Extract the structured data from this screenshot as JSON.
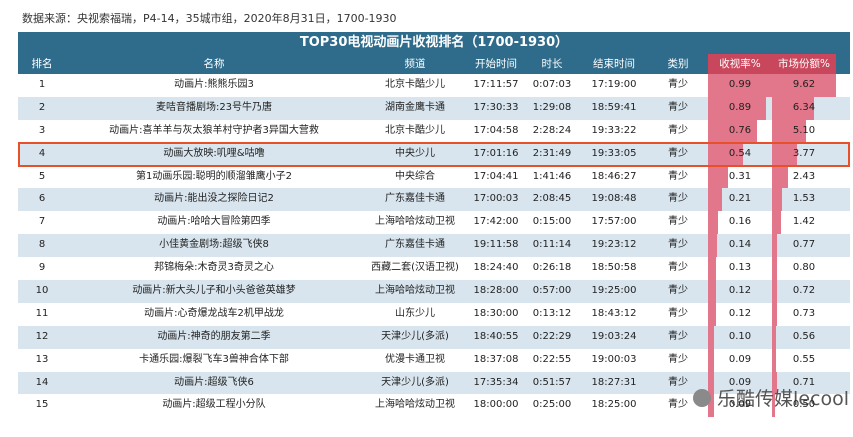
{
  "source": "数据来源：央视索福瑞，P4-14，35城市组，2020年8月31日，1700-1930",
  "brand": "乐酷传媒lecool",
  "chart_data": {
    "type": "table",
    "title": "TOP30电视动画片收视排名（1700-1930）",
    "columns": [
      "排名",
      "名称",
      "频道",
      "开始时间",
      "时长",
      "结束时间",
      "类别",
      "收视率%",
      "市场份额%"
    ],
    "highlight_rank": 4,
    "max_rating": 0.99,
    "max_share": 9.62,
    "rows": [
      {
        "rank": "1",
        "name": "动画片:熊熊乐园3",
        "channel": "北京卡酷少儿",
        "start": "17:11:57",
        "duration": "0:07:03",
        "end": "17:19:00",
        "category": "青少",
        "rating": 0.99,
        "share": 9.62
      },
      {
        "rank": "2",
        "name": "麦咭音播剧场:23号牛乃唐",
        "channel": "湖南金鹰卡通",
        "start": "17:30:33",
        "duration": "1:29:08",
        "end": "18:59:41",
        "category": "青少",
        "rating": 0.89,
        "share": 6.34
      },
      {
        "rank": "3",
        "name": "动画片:喜羊羊与灰太狼羊村守护者3异国大营救",
        "channel": "北京卡酷少儿",
        "start": "17:04:58",
        "duration": "2:28:24",
        "end": "19:33:22",
        "category": "青少",
        "rating": 0.76,
        "share": 5.1
      },
      {
        "rank": "4",
        "name": "动画大放映:叽哩&咕噜",
        "channel": "中央少儿",
        "start": "17:01:16",
        "duration": "2:31:49",
        "end": "19:33:05",
        "category": "青少",
        "rating": 0.54,
        "share": 3.77
      },
      {
        "rank": "5",
        "name": "第1动画乐园:聪明的顺溜雏鹰小子2",
        "channel": "中央综合",
        "start": "17:04:41",
        "duration": "1:41:46",
        "end": "18:46:27",
        "category": "青少",
        "rating": 0.31,
        "share": 2.43
      },
      {
        "rank": "6",
        "name": "动画片:能出没之探险日记2",
        "channel": "广东嘉佳卡通",
        "start": "17:00:03",
        "duration": "2:08:45",
        "end": "19:08:48",
        "category": "青少",
        "rating": 0.21,
        "share": 1.53
      },
      {
        "rank": "7",
        "name": "动画片:哈哈大冒险第四季",
        "channel": "上海哈哈炫动卫视",
        "start": "17:42:00",
        "duration": "0:15:00",
        "end": "17:57:00",
        "category": "青少",
        "rating": 0.16,
        "share": 1.42
      },
      {
        "rank": "8",
        "name": "小佳黄金剧场:超级飞侠8",
        "channel": "广东嘉佳卡通",
        "start": "19:11:58",
        "duration": "0:11:14",
        "end": "19:23:12",
        "category": "青少",
        "rating": 0.14,
        "share": 0.77
      },
      {
        "rank": "9",
        "name": "邦锦梅朵:木奇灵3奇灵之心",
        "channel": "西藏二套(汉语卫视)",
        "start": "18:24:40",
        "duration": "0:26:18",
        "end": "18:50:58",
        "category": "青少",
        "rating": 0.13,
        "share": 0.8
      },
      {
        "rank": "10",
        "name": "动画片:新大头儿子和小头爸爸英雄梦",
        "channel": "上海哈哈炫动卫视",
        "start": "18:28:00",
        "duration": "0:57:00",
        "end": "19:25:00",
        "category": "青少",
        "rating": 0.12,
        "share": 0.72
      },
      {
        "rank": "11",
        "name": "动画片:心奇爆龙战车2机甲战龙",
        "channel": "山东少儿",
        "start": "18:30:00",
        "duration": "0:13:12",
        "end": "18:43:12",
        "category": "青少",
        "rating": 0.12,
        "share": 0.73
      },
      {
        "rank": "12",
        "name": "动画片:神奇的朋友第二季",
        "channel": "天津少儿(多派)",
        "start": "18:40:55",
        "duration": "0:22:29",
        "end": "19:03:24",
        "category": "青少",
        "rating": 0.1,
        "share": 0.56
      },
      {
        "rank": "13",
        "name": "卡通乐园:爆裂飞车3兽神合体下部",
        "channel": "优漫卡通卫视",
        "start": "18:37:08",
        "duration": "0:22:55",
        "end": "19:00:03",
        "category": "青少",
        "rating": 0.09,
        "share": 0.55
      },
      {
        "rank": "14",
        "name": "动画片:超级飞侠6",
        "channel": "天津少儿(多派)",
        "start": "17:35:34",
        "duration": "0:51:57",
        "end": "18:27:31",
        "category": "青少",
        "rating": 0.09,
        "share": 0.71
      },
      {
        "rank": "15",
        "name": "动画片:超级工程小分队",
        "channel": "上海哈哈炫动卫视",
        "start": "18:00:00",
        "duration": "0:25:00",
        "end": "18:25:00",
        "category": "青少",
        "rating": 0.09,
        "share": 0.5
      }
    ]
  }
}
